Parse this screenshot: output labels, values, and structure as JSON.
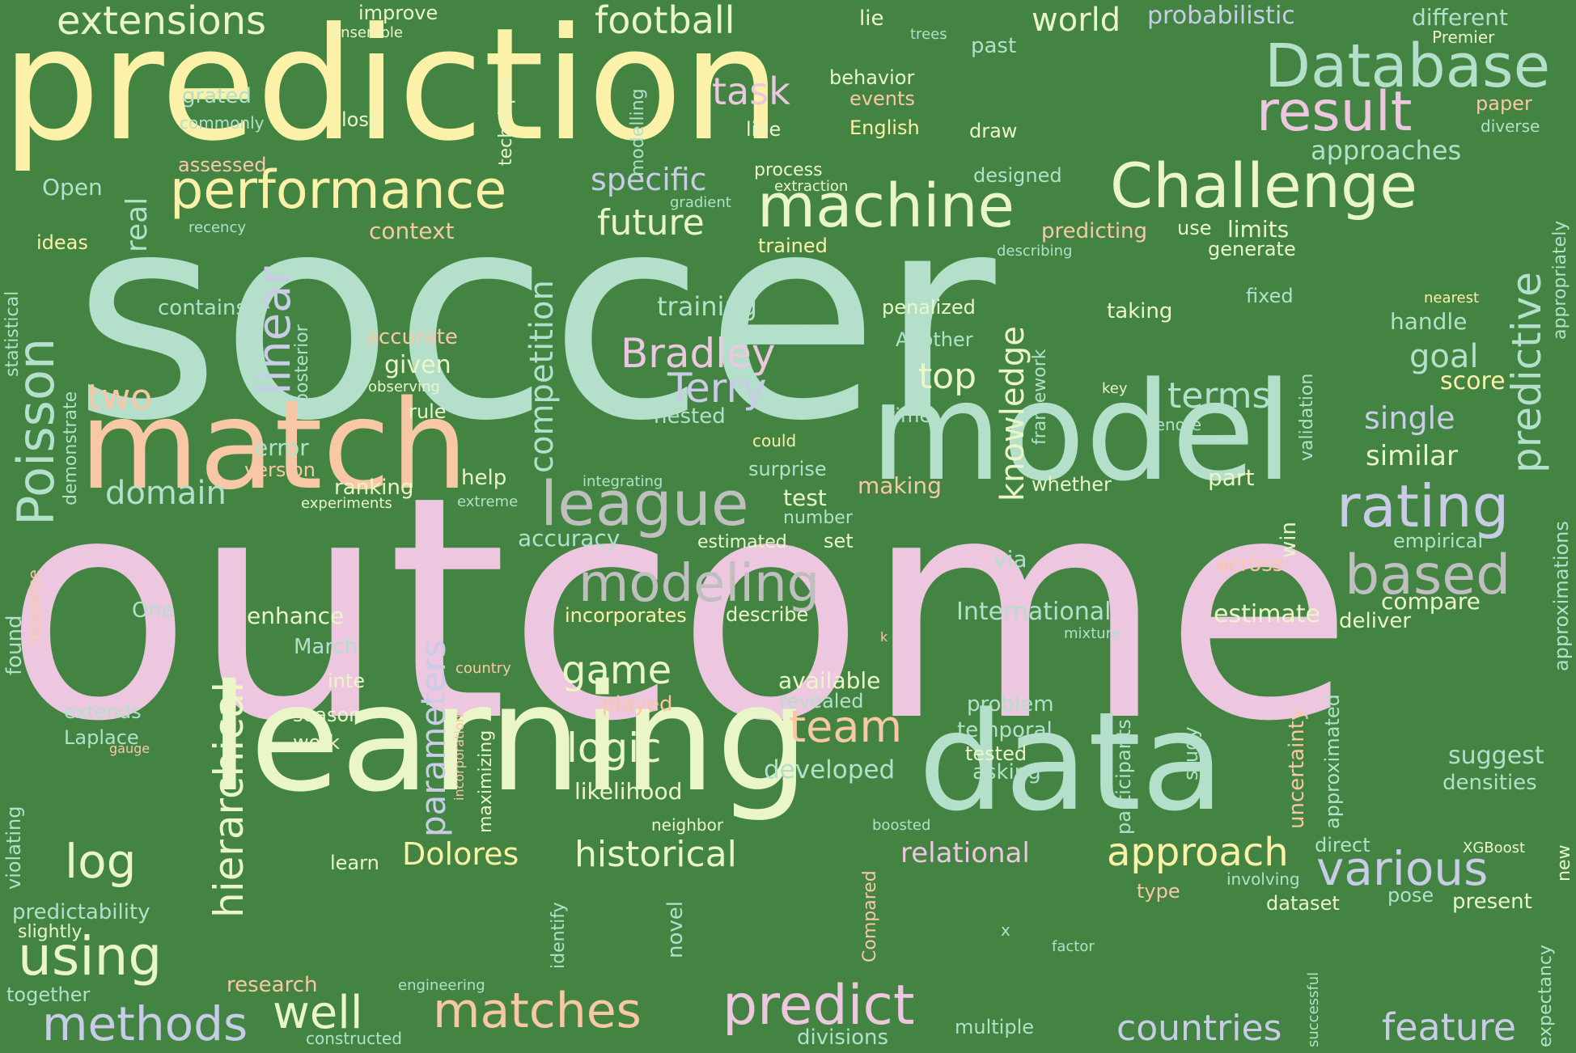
{
  "palette": {
    "background": "#438442",
    "mint": "#b3dfcb",
    "pink": "#edc6e0",
    "yellow": "#fcf1a8",
    "cream": "#eaf6c8",
    "peach": "#f8c8a6",
    "lavender": "#c8cce6",
    "grey": "#bfbfbf"
  },
  "words": [
    {
      "text": "soccer",
      "color": "mint"
    },
    {
      "text": "outcome",
      "color": "pink"
    },
    {
      "text": "prediction",
      "color": "yellow"
    },
    {
      "text": "learning",
      "color": "cream"
    },
    {
      "text": "model",
      "color": "mint"
    },
    {
      "text": "match",
      "color": "peach"
    },
    {
      "text": "data",
      "color": "mint"
    },
    {
      "text": "Challenge",
      "color": "cream"
    },
    {
      "text": "Database",
      "color": "mint"
    },
    {
      "text": "machine",
      "color": "cream"
    },
    {
      "text": "performance",
      "color": "yellow"
    },
    {
      "text": "league",
      "color": "grey"
    },
    {
      "text": "rating",
      "color": "lavender"
    },
    {
      "text": "modeling",
      "color": "grey"
    },
    {
      "text": "result",
      "color": "pink"
    },
    {
      "text": "based",
      "color": "grey"
    },
    {
      "text": "predict",
      "color": "pink"
    },
    {
      "text": "matches",
      "color": "peach"
    },
    {
      "text": "using",
      "color": "cream"
    },
    {
      "text": "various",
      "color": "lavender"
    },
    {
      "text": "approach",
      "color": "yellow"
    },
    {
      "text": "historical",
      "color": "cream"
    },
    {
      "text": "logic",
      "color": "cream"
    },
    {
      "text": "team",
      "color": "peach"
    },
    {
      "text": "methods",
      "color": "lavender"
    },
    {
      "text": "log",
      "color": "cream"
    },
    {
      "text": "well",
      "color": "cream"
    },
    {
      "text": "countries",
      "color": "lavender"
    },
    {
      "text": "feature",
      "color": "lavender"
    },
    {
      "text": "Bradley",
      "color": "pink"
    },
    {
      "text": "Terry",
      "color": "lavender"
    },
    {
      "text": "game",
      "color": "cream"
    },
    {
      "text": "football",
      "color": "cream"
    },
    {
      "text": "extensions",
      "color": "cream"
    },
    {
      "text": "world",
      "color": "cream"
    },
    {
      "text": "task",
      "color": "pink"
    },
    {
      "text": "future",
      "color": "cream"
    },
    {
      "text": "specific",
      "color": "lavender"
    },
    {
      "text": "two",
      "color": "peach"
    },
    {
      "text": "domain",
      "color": "mint"
    },
    {
      "text": "top",
      "color": "cream"
    },
    {
      "text": "terms",
      "color": "mint"
    },
    {
      "text": "goal",
      "color": "mint"
    },
    {
      "text": "single",
      "color": "lavender"
    },
    {
      "text": "similar",
      "color": "cream"
    },
    {
      "text": "score",
      "color": "yellow"
    },
    {
      "text": "Dolores",
      "color": "yellow"
    },
    {
      "text": "relational",
      "color": "pink"
    },
    {
      "text": "developed",
      "color": "mint"
    },
    {
      "text": "approaches",
      "color": "mint"
    },
    {
      "text": "probabilistic",
      "color": "lavender"
    },
    {
      "text": "different",
      "color": "mint"
    },
    {
      "text": "training",
      "color": "mint"
    },
    {
      "text": "International",
      "color": "mint"
    },
    {
      "text": "estimate",
      "color": "cream"
    },
    {
      "text": "compare",
      "color": "cream"
    },
    {
      "text": "deliver",
      "color": "cream"
    },
    {
      "text": "suggest",
      "color": "mint"
    },
    {
      "text": "densities",
      "color": "mint"
    },
    {
      "text": "context",
      "color": "peach"
    },
    {
      "text": "contains",
      "color": "mint"
    },
    {
      "text": "accurate",
      "color": "peach"
    },
    {
      "text": "given",
      "color": "cream"
    },
    {
      "text": "rule",
      "color": "cream"
    },
    {
      "text": "error",
      "color": "mint"
    },
    {
      "text": "version",
      "color": "peach"
    },
    {
      "text": "nested",
      "color": "mint"
    },
    {
      "text": "time",
      "color": "mint"
    },
    {
      "text": "whether",
      "color": "cream"
    },
    {
      "text": "part",
      "color": "cream"
    },
    {
      "text": "test",
      "color": "cream"
    },
    {
      "text": "making",
      "color": "peach"
    },
    {
      "text": "number",
      "color": "mint"
    },
    {
      "text": "set",
      "color": "cream"
    },
    {
      "text": "estimated",
      "color": "cream"
    },
    {
      "text": "accuracy",
      "color": "mint"
    },
    {
      "text": "enhance",
      "color": "cream"
    },
    {
      "text": "One",
      "color": "mint"
    },
    {
      "text": "incorporates",
      "color": "yellow"
    },
    {
      "text": "describe",
      "color": "cream"
    },
    {
      "text": "available",
      "color": "cream"
    },
    {
      "text": "revealed",
      "color": "mint"
    },
    {
      "text": "played",
      "color": "peach"
    },
    {
      "text": "problem",
      "color": "mint"
    },
    {
      "text": "temporal",
      "color": "mint"
    },
    {
      "text": "tested",
      "color": "cream"
    },
    {
      "text": "asking",
      "color": "mint"
    },
    {
      "text": "likelihood",
      "color": "cream"
    },
    {
      "text": "March",
      "color": "mint"
    },
    {
      "text": "inte",
      "color": "cream"
    },
    {
      "text": "season",
      "color": "cream"
    },
    {
      "text": "work",
      "color": "cream"
    },
    {
      "text": "extends",
      "color": "mint"
    },
    {
      "text": "Laplace",
      "color": "mint"
    },
    {
      "text": "gauge",
      "color": "peach"
    },
    {
      "text": "across",
      "color": "peach"
    },
    {
      "text": "empirical",
      "color": "mint"
    },
    {
      "text": "via",
      "color": "mint"
    },
    {
      "text": "improve",
      "color": "cream"
    },
    {
      "text": "ensemble",
      "color": "cream"
    },
    {
      "text": "lie",
      "color": "cream"
    },
    {
      "text": "trees",
      "color": "mint"
    },
    {
      "text": "past",
      "color": "mint"
    },
    {
      "text": "Premier",
      "color": "cream"
    },
    {
      "text": "paper",
      "color": "peach"
    },
    {
      "text": "diverse",
      "color": "mint"
    },
    {
      "text": "behavior",
      "color": "cream"
    },
    {
      "text": "events",
      "color": "peach"
    },
    {
      "text": "English",
      "color": "yellow"
    },
    {
      "text": "draw",
      "color": "cream"
    },
    {
      "text": "line",
      "color": "cream"
    },
    {
      "text": "loss",
      "color": "cream"
    },
    {
      "text": "grated",
      "color": "mint"
    },
    {
      "text": "commonly",
      "color": "mint"
    },
    {
      "text": "assessed",
      "color": "peach"
    },
    {
      "text": "Open",
      "color": "mint"
    },
    {
      "text": "process",
      "color": "cream"
    },
    {
      "text": "extraction",
      "color": "cream"
    },
    {
      "text": "gradient",
      "color": "mint"
    },
    {
      "text": "designed",
      "color": "mint"
    },
    {
      "text": "recency",
      "color": "mint"
    },
    {
      "text": "ideas",
      "color": "yellow"
    },
    {
      "text": "trained",
      "color": "yellow"
    },
    {
      "text": "predicting",
      "color": "peach"
    },
    {
      "text": "use",
      "color": "cream"
    },
    {
      "text": "limits",
      "color": "cream"
    },
    {
      "text": "describing",
      "color": "mint"
    },
    {
      "text": "generate",
      "color": "cream"
    },
    {
      "text": "fixed",
      "color": "mint"
    },
    {
      "text": "nearest",
      "color": "yellow"
    },
    {
      "text": "penalized",
      "color": "cream"
    },
    {
      "text": "taking",
      "color": "cream"
    },
    {
      "text": "handle",
      "color": "mint"
    },
    {
      "text": "Another",
      "color": "mint"
    },
    {
      "text": "observing",
      "color": "cream"
    },
    {
      "text": "key",
      "color": "cream"
    },
    {
      "text": "denote",
      "color": "mint"
    },
    {
      "text": "could",
      "color": "yellow"
    },
    {
      "text": "surprise",
      "color": "mint"
    },
    {
      "text": "integrating",
      "color": "mint"
    },
    {
      "text": "help",
      "color": "cream"
    },
    {
      "text": "ranking",
      "color": "cream"
    },
    {
      "text": "experiments",
      "color": "cream"
    },
    {
      "text": "extreme",
      "color": "mint"
    },
    {
      "text": "mixture",
      "color": "mint"
    },
    {
      "text": "country",
      "color": "peach"
    },
    {
      "text": "neighbor",
      "color": "cream"
    },
    {
      "text": "boosted",
      "color": "mint"
    },
    {
      "text": "XGBoost",
      "color": "cream"
    },
    {
      "text": "direct",
      "color": "mint"
    },
    {
      "text": "involving",
      "color": "mint"
    },
    {
      "text": "type",
      "color": "peach"
    },
    {
      "text": "dataset",
      "color": "cream"
    },
    {
      "text": "pose",
      "color": "mint"
    },
    {
      "text": "present",
      "color": "cream"
    },
    {
      "text": "learn",
      "color": "cream"
    },
    {
      "text": "x",
      "color": "mint"
    },
    {
      "text": "factor",
      "color": "mint"
    },
    {
      "text": "multiple",
      "color": "mint"
    },
    {
      "text": "divisions",
      "color": "mint"
    },
    {
      "text": "research",
      "color": "peach"
    },
    {
      "text": "engineering",
      "color": "mint"
    },
    {
      "text": "together",
      "color": "mint"
    },
    {
      "text": "constructed",
      "color": "mint"
    },
    {
      "text": "predictability",
      "color": "mint"
    },
    {
      "text": "slightly",
      "color": "cream"
    },
    {
      "text": "k",
      "color": "peach"
    },
    {
      "text": "Poisson",
      "color": "mint"
    },
    {
      "text": "linear",
      "color": "lavender"
    },
    {
      "text": "real",
      "color": "mint"
    },
    {
      "text": "hierarchical",
      "color": "cream"
    },
    {
      "text": "parameters",
      "color": "lavender"
    },
    {
      "text": "competition",
      "color": "mint"
    },
    {
      "text": "knowledge",
      "color": "cream"
    },
    {
      "text": "predictive",
      "color": "mint"
    },
    {
      "text": "technique",
      "color": "cream"
    },
    {
      "text": "modelling",
      "color": "mint"
    },
    {
      "text": "posterior",
      "color": "mint"
    },
    {
      "text": "demonstrate",
      "color": "mint"
    },
    {
      "text": "statistical",
      "color": "mint"
    },
    {
      "text": "framework",
      "color": "mint"
    },
    {
      "text": "validation",
      "color": "mint"
    },
    {
      "text": "win",
      "color": "cream"
    },
    {
      "text": "uncertainty",
      "color": "peach"
    },
    {
      "text": "approximated",
      "color": "mint"
    },
    {
      "text": "study",
      "color": "mint"
    },
    {
      "text": "participants",
      "color": "mint"
    },
    {
      "text": "maximizing",
      "color": "cream"
    },
    {
      "text": "incorporation",
      "color": "peach"
    },
    {
      "text": "novel",
      "color": "mint"
    },
    {
      "text": "identify",
      "color": "mint"
    },
    {
      "text": "Compared",
      "color": "peach"
    },
    {
      "text": "successful",
      "color": "mint"
    },
    {
      "text": "violating",
      "color": "mint"
    },
    {
      "text": "found",
      "color": "mint"
    },
    {
      "text": "response",
      "color": "peach"
    },
    {
      "text": "appropriately",
      "color": "mint"
    },
    {
      "text": "approximations",
      "color": "mint"
    },
    {
      "text": "expectancy",
      "color": "mint"
    },
    {
      "text": "new",
      "color": "cream"
    }
  ]
}
